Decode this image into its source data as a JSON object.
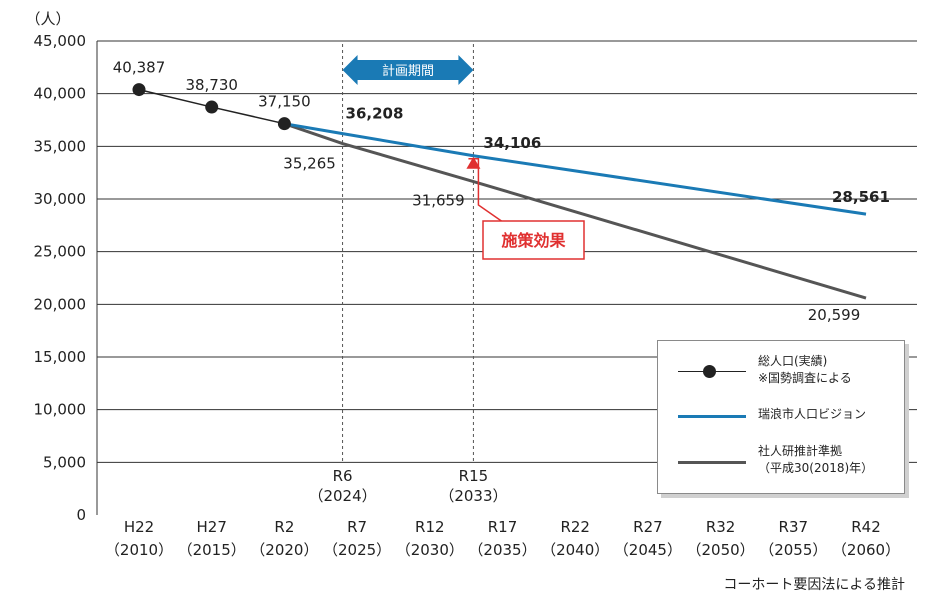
{
  "chart_data": {
    "type": "line",
    "unit_label": "（人）",
    "categories": [
      {
        "code": "H22",
        "year": "（2010）"
      },
      {
        "code": "H27",
        "year": "（2015）"
      },
      {
        "code": "R2",
        "year": "（2020）"
      },
      {
        "code": "R7",
        "year": "（2025）"
      },
      {
        "code": "R12",
        "year": "（2030）"
      },
      {
        "code": "R17",
        "year": "（2035）"
      },
      {
        "code": "R22",
        "year": "（2040）"
      },
      {
        "code": "R27",
        "year": "（2045）"
      },
      {
        "code": "R32",
        "year": "（2050）"
      },
      {
        "code": "R37",
        "year": "（2055）"
      },
      {
        "code": "R42",
        "year": "（2060）"
      }
    ],
    "ylim": [
      0,
      45000
    ],
    "y_ticks": [
      "0",
      "5,000",
      "10,000",
      "15,000",
      "20,000",
      "25,000",
      "30,000",
      "35,000",
      "40,000",
      "45,000"
    ],
    "grid": "horizontal",
    "series": [
      {
        "name": "総人口(実績)",
        "name_note": "※国勢調査による",
        "color": "#222222",
        "marker": "circle",
        "points": [
          {
            "x": 2010,
            "y": 40387,
            "label": "40,387"
          },
          {
            "x": 2015,
            "y": 38730,
            "label": "38,730"
          },
          {
            "x": 2020,
            "y": 37150,
            "label": "37,150"
          }
        ]
      },
      {
        "name": "瑞浪市人口ビジョン",
        "color": "#1a7ab5",
        "points": [
          {
            "x": 2020,
            "y": 37150
          },
          {
            "x": 2024,
            "y": 36208,
            "label": "36,208"
          },
          {
            "x": 2033,
            "y": 34106,
            "label": "34,106"
          },
          {
            "x": 2060,
            "y": 28561,
            "label": "28,561"
          }
        ]
      },
      {
        "name": "社人研推計準拠",
        "name_note": "（平成30(2018)年）",
        "color": "#555555",
        "points": [
          {
            "x": 2020,
            "y": 37150
          },
          {
            "x": 2024,
            "y": 35265,
            "label": "35,265"
          },
          {
            "x": 2033,
            "y": 31659,
            "label": "31,659"
          },
          {
            "x": 2060,
            "y": 20599,
            "label": "20,599"
          }
        ]
      }
    ],
    "annotations": {
      "plan_period_label": "計画期間",
      "plan_start": {
        "x": 2024,
        "code": "R6",
        "year": "（2024）"
      },
      "plan_end": {
        "x": 2033,
        "code": "R15",
        "year": "（2033）"
      },
      "policy_effect_label": "施策効果",
      "plan_arrow_color": "#1a7ab5",
      "policy_effect_color": "#e03030"
    },
    "legend_position": "bottom-right"
  },
  "footnote": "コーホート要因法による推計"
}
